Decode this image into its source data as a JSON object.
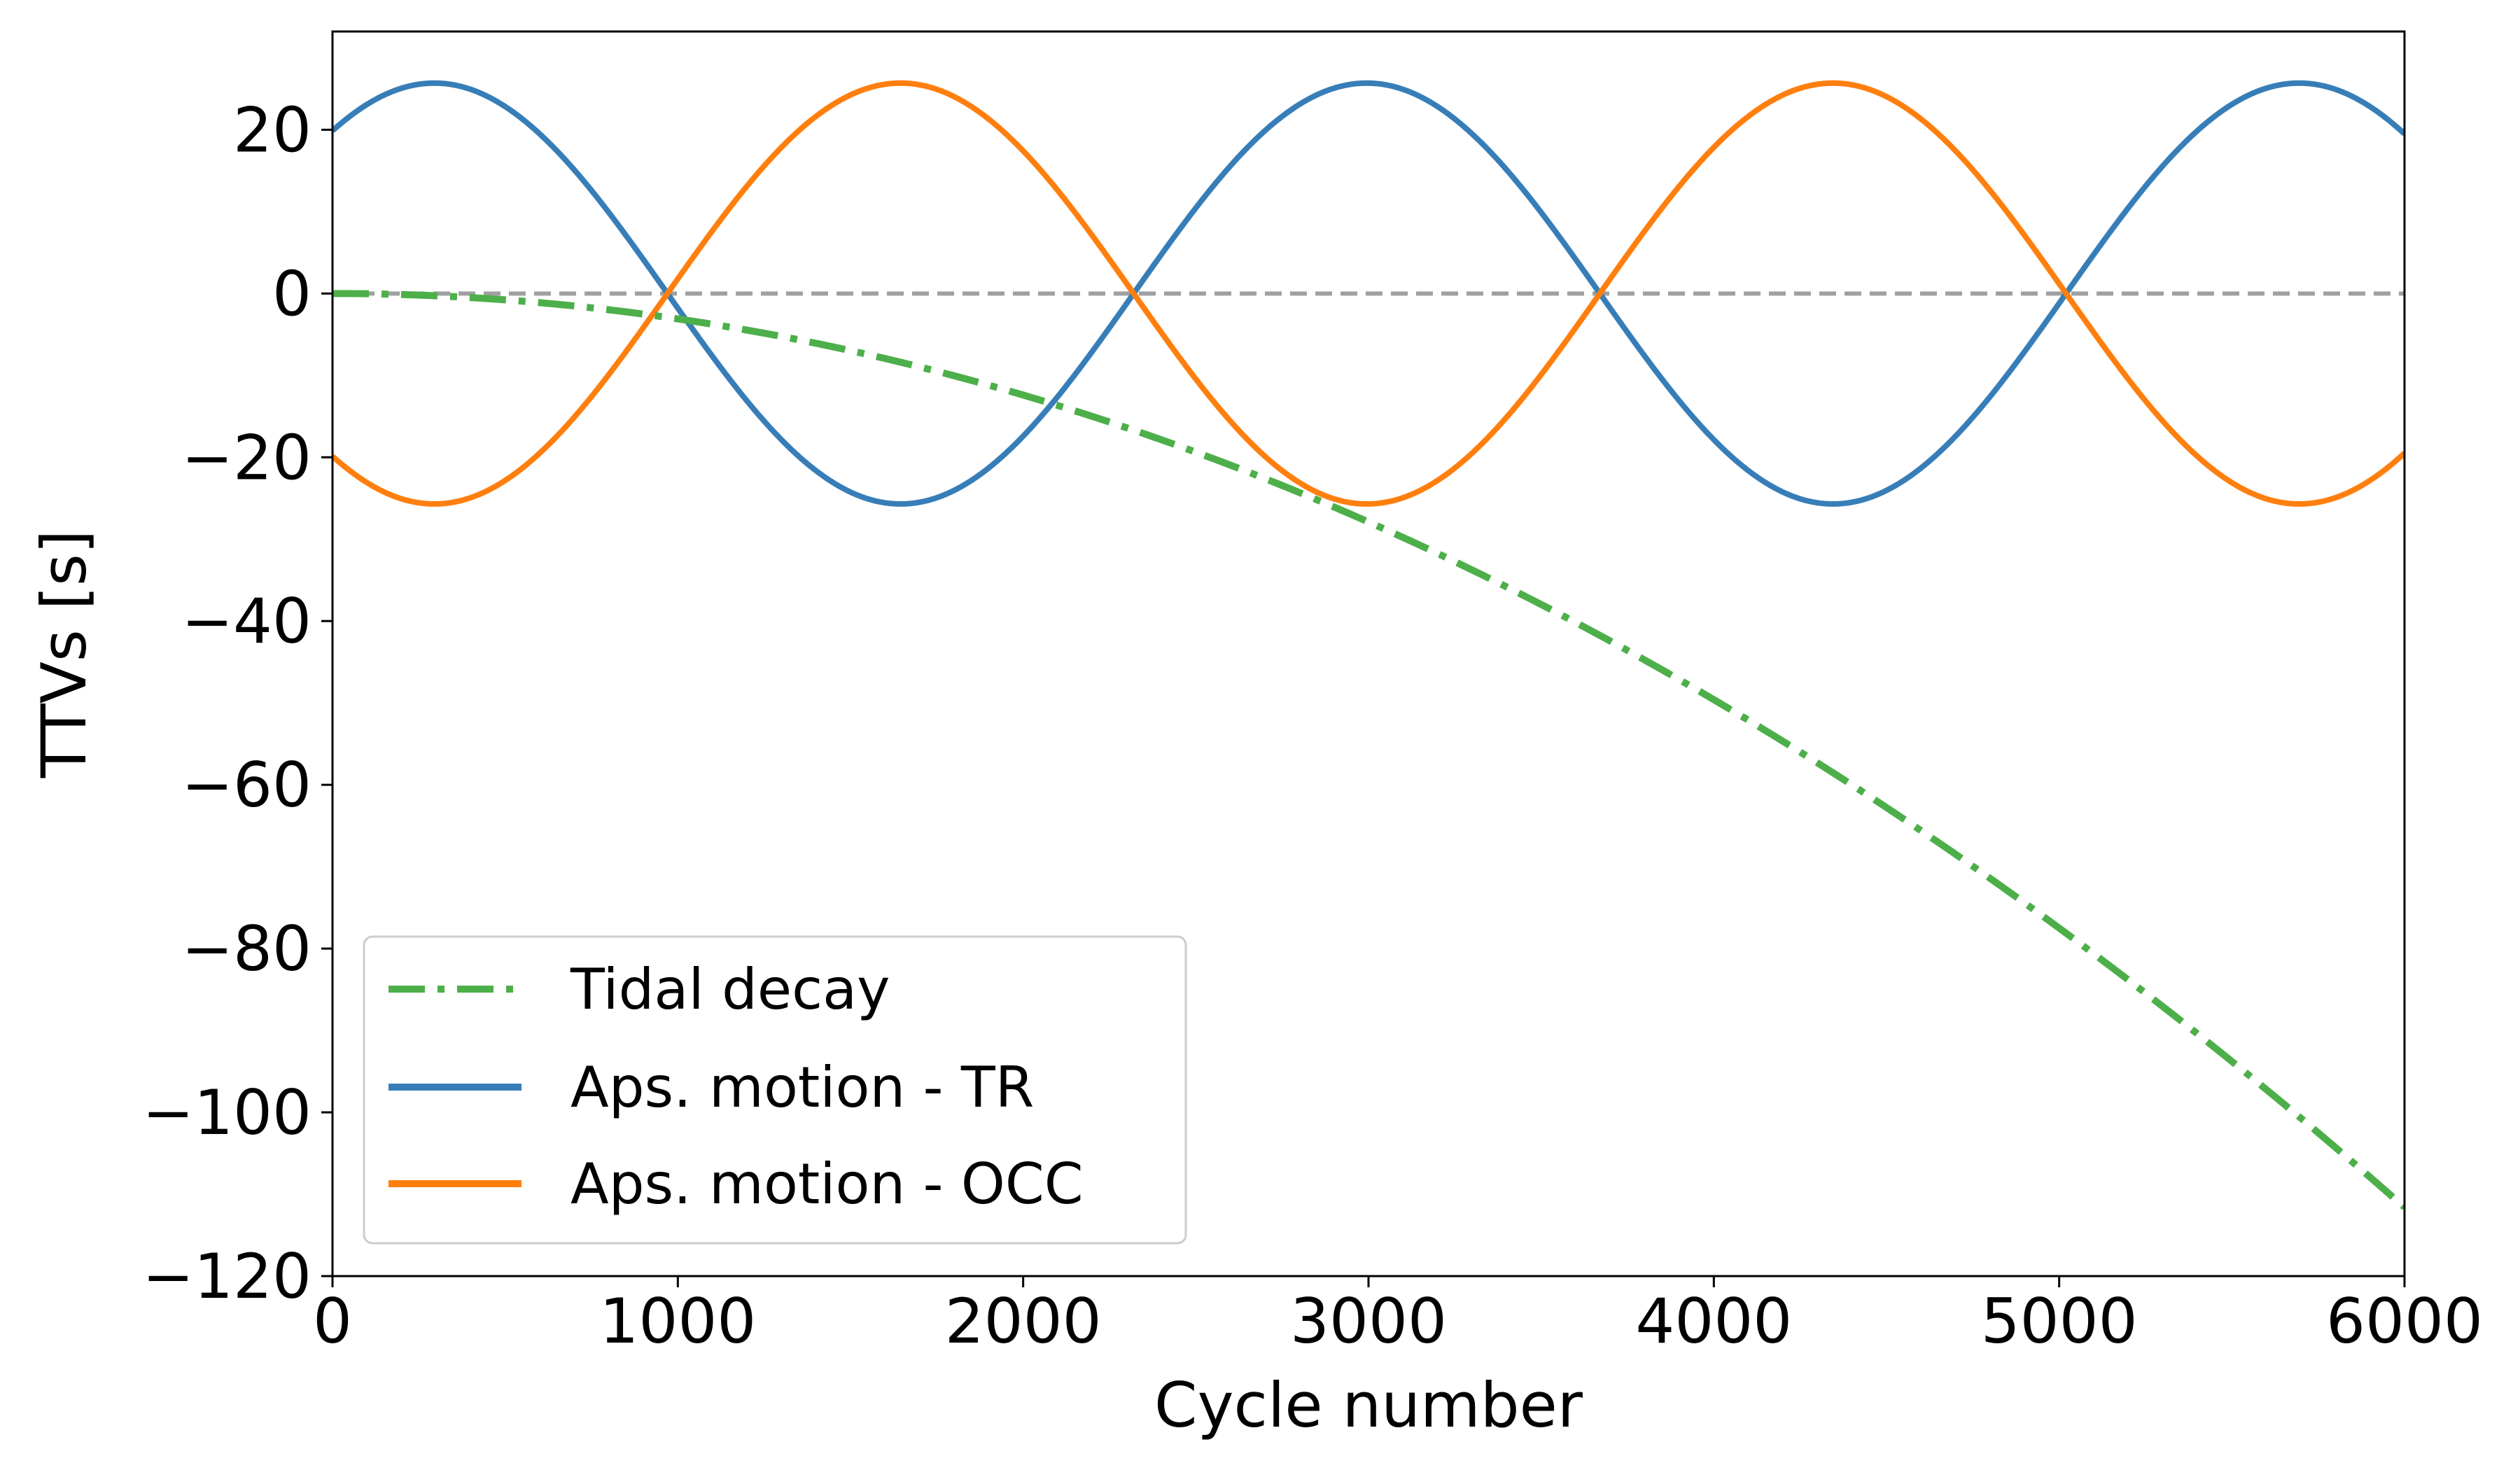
{
  "chart_data": {
    "type": "line",
    "title": "",
    "xlabel": "Cycle number",
    "ylabel": "TTVs [s]",
    "xlim": [
      0,
      6000
    ],
    "ylim": [
      -120,
      32
    ],
    "xticks": [
      0,
      1000,
      2000,
      3000,
      4000,
      5000,
      6000
    ],
    "xtick_labels": [
      "0",
      "1000",
      "2000",
      "3000",
      "4000",
      "5000",
      "6000"
    ],
    "yticks": [
      20,
      0,
      -20,
      -40,
      -60,
      -80,
      -100,
      -120
    ],
    "ytick_labels": [
      "20",
      "0",
      "−20",
      "−40",
      "−60",
      "−80",
      "−100",
      "−120"
    ],
    "grid": false,
    "reference_line": {
      "y": 0,
      "color": "#a0a0a0",
      "style": "dashed"
    },
    "legend_position": "lower-left",
    "series": [
      {
        "name": "Tidal decay",
        "color": "#4daf4a",
        "style": "dashdot",
        "model": {
          "kind": "quadratic",
          "coef": -3.1e-06
        },
        "x": [
          0,
          1000,
          2000,
          3000,
          4000,
          5000,
          6000
        ],
        "y": [
          0,
          -3.1,
          -12.4,
          -27.9,
          -49.6,
          -77.5,
          -111.6
        ]
      },
      {
        "name": "Aps. motion - TR",
        "color": "#377eb8",
        "style": "solid",
        "model": {
          "kind": "sine",
          "amplitude": 25.7,
          "period": 2700,
          "phase_x0": 295,
          "sign": 1
        },
        "x": [
          0,
          295,
          970,
          1645,
          2320,
          2995,
          3670,
          4345,
          5020,
          5695,
          6000
        ],
        "y": [
          19.5,
          25.7,
          0,
          -25.7,
          0,
          25.7,
          0,
          -25.7,
          0,
          25.7,
          19.5
        ]
      },
      {
        "name": "Aps. motion - OCC",
        "color": "#ff7f0e",
        "style": "solid",
        "model": {
          "kind": "sine",
          "amplitude": 25.7,
          "period": 2700,
          "phase_x0": 295,
          "sign": -1
        },
        "x": [
          0,
          295,
          970,
          1645,
          2320,
          2995,
          3670,
          4345,
          5020,
          5695,
          6000
        ],
        "y": [
          -19.5,
          -25.7,
          0,
          25.7,
          0,
          -25.7,
          0,
          25.7,
          0,
          -25.7,
          -19.5
        ]
      }
    ]
  }
}
